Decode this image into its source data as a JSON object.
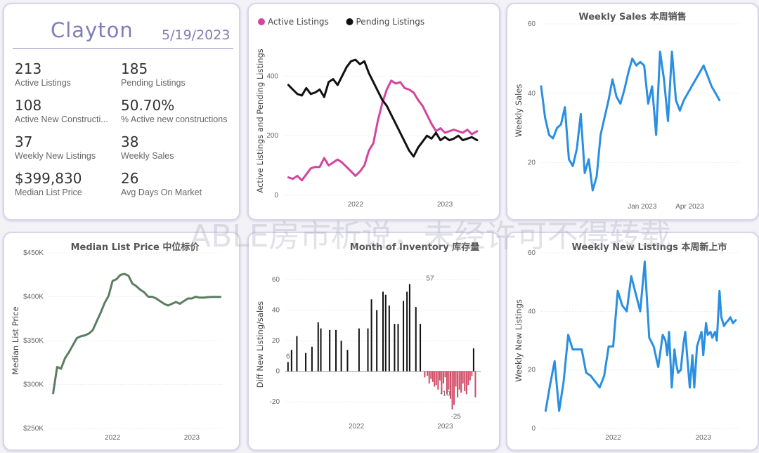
{
  "kpi": {
    "title": "Clayton",
    "date": "5/19/2023",
    "items": [
      {
        "value": "213",
        "label": "Active Listings"
      },
      {
        "value": "185",
        "label": "Pending Listings"
      },
      {
        "value": "108",
        "label": "Active New Constructi..."
      },
      {
        "value": "50.70%",
        "label": "% Active new constructions"
      },
      {
        "value": "37",
        "label": "Weekly New Listings"
      },
      {
        "value": "38",
        "label": "Weekly Sales"
      },
      {
        "value": "$399,830",
        "label": "Median List Price"
      },
      {
        "value": "26",
        "label": "Avg Days On Market"
      }
    ]
  },
  "watermark": "ABLE房市析说，未经许可不得转载",
  "chart_data": [
    {
      "id": "listings",
      "type": "line",
      "title": "",
      "ylabel": "Active Listings and Pending Listings",
      "legend": "top-left",
      "ylim": [
        0,
        500
      ],
      "yticks": [
        0,
        200,
        400
      ],
      "xlim": [
        2021.2,
        2023.4
      ],
      "xticks": [
        {
          "v": 2022,
          "label": "2022"
        },
        {
          "v": 2023,
          "label": "2023"
        }
      ],
      "series": [
        {
          "name": "Active Listings",
          "color": "#d4449f",
          "x": [
            2021.25,
            2021.3,
            2021.35,
            2021.4,
            2021.45,
            2021.5,
            2021.55,
            2021.6,
            2021.65,
            2021.7,
            2021.75,
            2021.8,
            2021.85,
            2021.9,
            2021.95,
            2022.0,
            2022.05,
            2022.1,
            2022.15,
            2022.2,
            2022.25,
            2022.3,
            2022.35,
            2022.4,
            2022.45,
            2022.5,
            2022.55,
            2022.6,
            2022.65,
            2022.7,
            2022.75,
            2022.8,
            2022.85,
            2022.9,
            2022.95,
            2023.0,
            2023.05,
            2023.1,
            2023.15,
            2023.2,
            2023.25,
            2023.3,
            2023.36
          ],
          "y": [
            60,
            55,
            65,
            50,
            70,
            90,
            95,
            95,
            125,
            100,
            110,
            120,
            110,
            95,
            80,
            65,
            80,
            100,
            150,
            175,
            250,
            310,
            355,
            385,
            375,
            380,
            360,
            355,
            345,
            320,
            300,
            270,
            240,
            215,
            225,
            210,
            215,
            220,
            215,
            210,
            220,
            205,
            215
          ]
        },
        {
          "name": "Pending Listings",
          "color": "#111111",
          "x": [
            2021.25,
            2021.3,
            2021.35,
            2021.4,
            2021.45,
            2021.5,
            2021.55,
            2021.6,
            2021.65,
            2021.7,
            2021.75,
            2021.8,
            2021.85,
            2021.9,
            2021.95,
            2022.0,
            2022.05,
            2022.1,
            2022.15,
            2022.2,
            2022.25,
            2022.3,
            2022.35,
            2022.4,
            2022.45,
            2022.5,
            2022.55,
            2022.6,
            2022.65,
            2022.7,
            2022.75,
            2022.8,
            2022.85,
            2022.9,
            2022.95,
            2023.0,
            2023.05,
            2023.1,
            2023.15,
            2023.2,
            2023.25,
            2023.3,
            2023.36
          ],
          "y": [
            370,
            355,
            340,
            335,
            360,
            340,
            345,
            355,
            330,
            380,
            390,
            370,
            400,
            430,
            450,
            455,
            440,
            450,
            410,
            380,
            350,
            320,
            300,
            270,
            240,
            210,
            180,
            150,
            130,
            160,
            180,
            200,
            190,
            210,
            185,
            195,
            185,
            190,
            200,
            185,
            190,
            195,
            185
          ]
        }
      ]
    },
    {
      "id": "weekly_sales",
      "type": "line",
      "title": "Weekly Sales 本周销售",
      "ylabel": "Weekly Sales",
      "ylim": [
        10,
        60
      ],
      "yticks": [
        20,
        40,
        60
      ],
      "xlim": [
        0,
        100
      ],
      "xticks": [
        {
          "v": 51,
          "label": "Jan 2023"
        },
        {
          "v": 75,
          "label": "Apr 2023"
        }
      ],
      "series": [
        {
          "name": "",
          "color": "#2a8fe0",
          "x": [
            0,
            2,
            4,
            6,
            8,
            10,
            12,
            14,
            16,
            18,
            20,
            22,
            24,
            26,
            28,
            30,
            32,
            34,
            36,
            38,
            40,
            42,
            44,
            46,
            48,
            50,
            52,
            54,
            56,
            58,
            60,
            62,
            64,
            66,
            68,
            70,
            72,
            74,
            76,
            78,
            80,
            82,
            84,
            86,
            88,
            90
          ],
          "y": [
            42,
            33,
            28,
            27,
            30,
            31,
            36,
            21,
            19,
            24,
            34,
            17,
            21,
            12,
            16,
            28,
            33,
            38,
            44,
            39,
            37,
            41,
            46,
            50,
            48,
            49,
            48,
            37,
            42,
            28,
            52,
            44,
            32,
            52,
            38,
            35,
            38,
            40,
            42,
            44,
            46,
            48,
            45,
            42,
            40,
            38
          ]
        }
      ]
    },
    {
      "id": "median_price",
      "type": "line",
      "title": "Median List Price 中位标价",
      "ylabel": "Median List Price",
      "ylim": [
        250000,
        450000
      ],
      "yticks": [
        {
          "v": 250000,
          "label": "$250K"
        },
        {
          "v": 300000,
          "label": "$300K"
        },
        {
          "v": 350000,
          "label": "$350K"
        },
        {
          "v": 400000,
          "label": "$400K"
        },
        {
          "v": 450000,
          "label": "$450K"
        }
      ],
      "xlim": [
        2021.2,
        2023.4
      ],
      "xticks": [
        {
          "v": 2022,
          "label": "2022"
        },
        {
          "v": 2023,
          "label": "2023"
        }
      ],
      "series": [
        {
          "name": "",
          "color": "#5b7d62",
          "x": [
            2021.25,
            2021.3,
            2021.35,
            2021.4,
            2021.45,
            2021.5,
            2021.55,
            2021.6,
            2021.65,
            2021.7,
            2021.75,
            2021.8,
            2021.85,
            2021.9,
            2021.95,
            2022.0,
            2022.05,
            2022.1,
            2022.15,
            2022.2,
            2022.25,
            2022.3,
            2022.35,
            2022.4,
            2022.45,
            2022.5,
            2022.55,
            2022.6,
            2022.65,
            2022.7,
            2022.75,
            2022.8,
            2022.85,
            2022.9,
            2022.95,
            2023.0,
            2023.05,
            2023.1,
            2023.15,
            2023.2,
            2023.25,
            2023.3,
            2023.36
          ],
          "y": [
            290000,
            320000,
            318000,
            330000,
            337000,
            345000,
            353000,
            355000,
            356000,
            358000,
            362000,
            372000,
            382000,
            393000,
            401000,
            418000,
            420000,
            425000,
            426000,
            424000,
            415000,
            412000,
            408000,
            405000,
            400000,
            400000,
            398000,
            395000,
            392000,
            390000,
            392000,
            394000,
            392000,
            395000,
            398000,
            398000,
            400000,
            399000,
            399000,
            399500,
            399830,
            399830,
            399830
          ]
        }
      ]
    },
    {
      "id": "months_inventory",
      "type": "bar",
      "title": "Month of Inventory 库存量",
      "ylabel": "Diff New Listing/sales",
      "ylim": [
        -30,
        65
      ],
      "yticks": [
        -20,
        0,
        20,
        40,
        60
      ],
      "xlim": [
        2021.2,
        2023.4
      ],
      "xticks": [
        {
          "v": 2022,
          "label": "2022"
        },
        {
          "v": 2023,
          "label": "2023"
        }
      ],
      "annotations": [
        {
          "x": 2021.23,
          "y": 6,
          "label": "6"
        },
        {
          "x": 2022.83,
          "y": 57,
          "label": "57"
        },
        {
          "x": 2023.0,
          "y": -10,
          "label": "-10"
        },
        {
          "x": 2023.12,
          "y": -25,
          "label": "-25"
        }
      ],
      "pos_color": "#111111",
      "neg_color": "#d04a63",
      "x": [
        2021.23,
        2021.27,
        2021.33,
        2021.43,
        2021.5,
        2021.57,
        2021.6,
        2021.7,
        2021.77,
        2021.83,
        2021.9,
        2022.03,
        2022.13,
        2022.17,
        2022.23,
        2022.3,
        2022.33,
        2022.37,
        2022.43,
        2022.47,
        2022.53,
        2022.57,
        2022.6,
        2022.67,
        2022.72,
        2022.77,
        2022.8,
        2022.82,
        2022.84,
        2022.86,
        2022.88,
        2022.9,
        2022.92,
        2022.94,
        2022.96,
        2022.98,
        2023.0,
        2023.02,
        2023.04,
        2023.06,
        2023.08,
        2023.1,
        2023.12,
        2023.14,
        2023.16,
        2023.18,
        2023.2,
        2023.22,
        2023.24,
        2023.26,
        2023.28,
        2023.3,
        2023.32,
        2023.34
      ],
      "values": [
        6,
        14,
        23,
        12,
        16,
        32,
        28,
        27,
        27,
        20,
        14,
        28,
        28,
        47,
        40,
        52,
        50,
        43,
        31,
        31,
        46,
        52,
        57,
        42,
        31,
        -4,
        -3,
        -8,
        -5,
        -7,
        -10,
        -9,
        -12,
        -6,
        -15,
        -8,
        -4,
        -15,
        -12,
        -18,
        -25,
        -22,
        -10,
        -17,
        -12,
        -14,
        -8,
        -13,
        -15,
        -9,
        -6,
        -3,
        15,
        -17
      ]
    },
    {
      "id": "weekly_new_listings",
      "type": "line",
      "title": "Weekly New Listings 本周新上市",
      "ylabel": "Weekly New Listings",
      "ylim": [
        0,
        60
      ],
      "yticks": [
        0,
        20,
        40,
        60
      ],
      "xlim": [
        2021.2,
        2023.4
      ],
      "xticks": [
        {
          "v": 2022,
          "label": "2022"
        },
        {
          "v": 2023,
          "label": "2023"
        }
      ],
      "series": [
        {
          "name": "",
          "color": "#2a8fe0",
          "x": [
            2021.25,
            2021.3,
            2021.35,
            2021.4,
            2021.45,
            2021.5,
            2021.55,
            2021.6,
            2021.65,
            2021.7,
            2021.75,
            2021.8,
            2021.85,
            2021.9,
            2021.95,
            2022.0,
            2022.05,
            2022.1,
            2022.15,
            2022.2,
            2022.25,
            2022.3,
            2022.35,
            2022.4,
            2022.45,
            2022.5,
            2022.55,
            2022.58,
            2022.6,
            2022.62,
            2022.65,
            2022.68,
            2022.7,
            2022.72,
            2022.75,
            2022.78,
            2022.8,
            2022.82,
            2022.85,
            2022.88,
            2022.9,
            2022.93,
            2022.95,
            2022.98,
            2023.0,
            2023.03,
            2023.05,
            2023.08,
            2023.1,
            2023.13,
            2023.15,
            2023.18,
            2023.2,
            2023.23,
            2023.25,
            2023.28,
            2023.3,
            2023.33,
            2023.36
          ],
          "y": [
            6,
            15,
            23,
            6,
            16,
            32,
            27,
            27,
            27,
            19,
            18,
            16,
            14,
            18,
            28,
            28,
            47,
            42,
            40,
            52,
            46,
            40,
            57,
            31,
            28,
            21,
            32,
            30,
            25,
            33,
            14,
            27,
            22,
            19,
            20,
            29,
            33,
            25,
            14,
            25,
            14,
            28,
            30,
            33,
            25,
            36,
            32,
            33,
            31,
            33,
            30,
            47,
            38,
            35,
            36,
            37,
            38,
            36,
            37
          ]
        }
      ]
    }
  ]
}
